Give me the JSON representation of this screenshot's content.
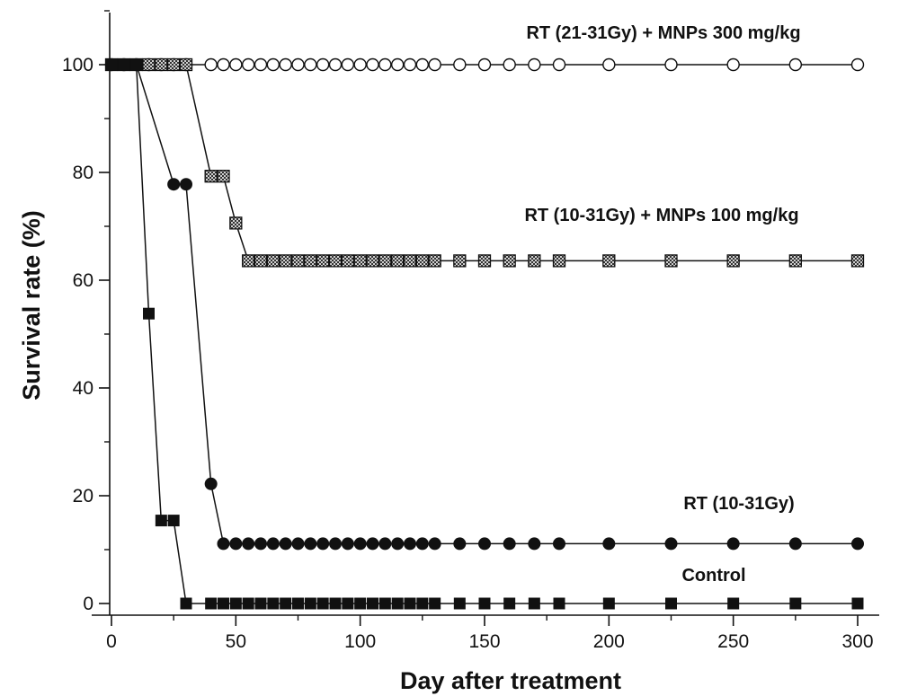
{
  "chart_data": {
    "type": "line",
    "title": "",
    "xlabel": "Day after treatment",
    "ylabel": "Survival rate (%)",
    "xlim": [
      0,
      310
    ],
    "ylim": [
      0,
      110
    ],
    "xticks": [
      "0",
      "50",
      "100",
      "150",
      "200",
      "250",
      "300"
    ],
    "yticks": [
      "0",
      "20",
      "40",
      "60",
      "80",
      "100"
    ],
    "grid": false,
    "legend": "none",
    "series": [
      {
        "name": "RT (21-31Gy) + MNPs 300 mg/kg",
        "marker": "open-circle",
        "x": [
          0,
          5,
          10,
          15,
          20,
          25,
          30,
          40,
          45,
          50,
          55,
          60,
          65,
          70,
          75,
          80,
          85,
          90,
          95,
          100,
          105,
          110,
          115,
          120,
          125,
          130,
          140,
          150,
          160,
          170,
          180,
          200,
          225,
          250,
          275,
          300
        ],
        "y": [
          100,
          100,
          100,
          100,
          100,
          100,
          100,
          100,
          100,
          100,
          100,
          100,
          100,
          100,
          100,
          100,
          100,
          100,
          100,
          100,
          100,
          100,
          100,
          100,
          100,
          100,
          100,
          100,
          100,
          100,
          100,
          100,
          100,
          100,
          100,
          100
        ]
      },
      {
        "name": "RT (10-31Gy) + MNPs 100 mg/kg",
        "marker": "hatched-square",
        "x": [
          0,
          5,
          10,
          15,
          20,
          25,
          30,
          40,
          45,
          50,
          55,
          60,
          65,
          70,
          75,
          80,
          85,
          90,
          95,
          100,
          105,
          110,
          115,
          120,
          125,
          130,
          140,
          150,
          160,
          170,
          180,
          200,
          225,
          250,
          275,
          300
        ],
        "y": [
          100,
          100,
          100,
          100,
          100,
          100,
          100,
          79.3,
          79.3,
          70.6,
          63.6,
          63.6,
          63.6,
          63.6,
          63.6,
          63.6,
          63.6,
          63.6,
          63.6,
          63.6,
          63.6,
          63.6,
          63.6,
          63.6,
          63.6,
          63.6,
          63.6,
          63.6,
          63.6,
          63.6,
          63.6,
          63.6,
          63.6,
          63.6,
          63.6,
          63.6
        ]
      },
      {
        "name": "RT (10-31Gy)",
        "marker": "filled-circle",
        "x": [
          0,
          5,
          10,
          25,
          30,
          40,
          45,
          50,
          55,
          60,
          65,
          70,
          75,
          80,
          85,
          90,
          95,
          100,
          105,
          110,
          115,
          120,
          125,
          130,
          140,
          150,
          160,
          170,
          180,
          200,
          225,
          250,
          275,
          300
        ],
        "y": [
          100,
          100,
          100,
          77.8,
          77.8,
          22.2,
          11.1,
          11.1,
          11.1,
          11.1,
          11.1,
          11.1,
          11.1,
          11.1,
          11.1,
          11.1,
          11.1,
          11.1,
          11.1,
          11.1,
          11.1,
          11.1,
          11.1,
          11.1,
          11.1,
          11.1,
          11.1,
          11.1,
          11.1,
          11.1,
          11.1,
          11.1,
          11.1,
          11.1
        ]
      },
      {
        "name": "Control",
        "marker": "filled-square",
        "x": [
          0,
          5,
          10,
          15,
          20,
          25,
          30,
          40,
          45,
          50,
          55,
          60,
          65,
          70,
          75,
          80,
          85,
          90,
          95,
          100,
          105,
          110,
          115,
          120,
          125,
          130,
          140,
          150,
          160,
          170,
          180,
          200,
          225,
          250,
          275,
          300
        ],
        "y": [
          100,
          100,
          100,
          53.8,
          15.4,
          15.4,
          0,
          0,
          0,
          0,
          0,
          0,
          0,
          0,
          0,
          0,
          0,
          0,
          0,
          0,
          0,
          0,
          0,
          0,
          0,
          0,
          0,
          0,
          0,
          0,
          0,
          0,
          0,
          0,
          0,
          0
        ]
      }
    ]
  }
}
